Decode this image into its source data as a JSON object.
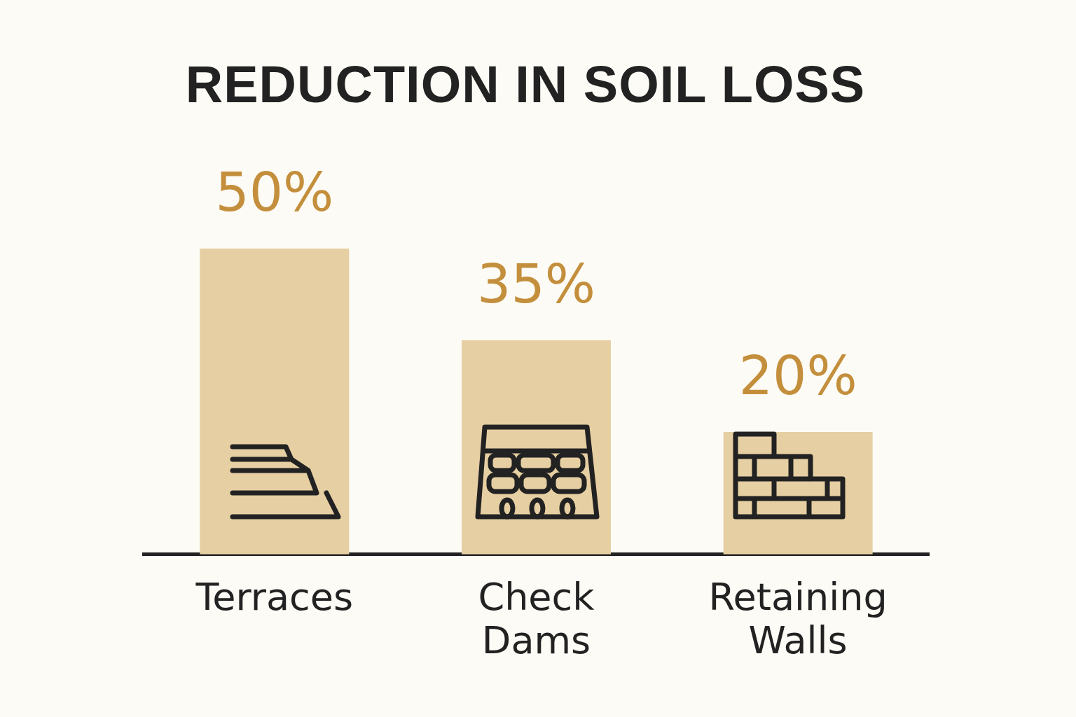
{
  "chart_data": {
    "type": "bar",
    "title": "REDUCTION IN SOIL LOSS",
    "categories": [
      "Terraces",
      "Check Dams",
      "Retaining Walls"
    ],
    "values": [
      50,
      35,
      20
    ],
    "value_labels": [
      "50%",
      "35%",
      "20%"
    ],
    "color": "#e6cfa2",
    "grid": false,
    "legend": false
  }
}
